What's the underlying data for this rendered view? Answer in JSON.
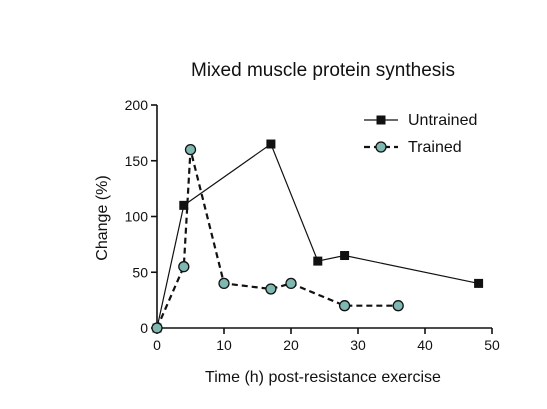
{
  "chart_data": {
    "type": "line",
    "title": "Mixed muscle protein synthesis",
    "xlabel": "Time (h) post-resistance exercise",
    "ylabel": "Change (%)",
    "xlim": [
      0,
      50
    ],
    "ylim": [
      0,
      200
    ],
    "x_ticks": [
      "0",
      "10",
      "20",
      "30",
      "40",
      "50"
    ],
    "y_ticks": [
      "0",
      "50",
      "100",
      "150",
      "200"
    ],
    "grid": false,
    "legend": "top-right",
    "series": [
      {
        "name": "Untrained",
        "marker": "square",
        "line_style": "solid",
        "marker_color": "#111111",
        "line_color": "#111111",
        "x": [
          0,
          4,
          17,
          24,
          28,
          48
        ],
        "y": [
          0,
          110,
          165,
          60,
          65,
          40
        ]
      },
      {
        "name": "Trained",
        "marker": "circle",
        "line_style": "dashed",
        "marker_color": "#7fb8b0",
        "line_color": "#111111",
        "x": [
          0,
          4,
          5,
          10,
          17,
          20,
          28,
          36
        ],
        "y": [
          0,
          55,
          160,
          40,
          35,
          40,
          20,
          20
        ]
      }
    ]
  }
}
